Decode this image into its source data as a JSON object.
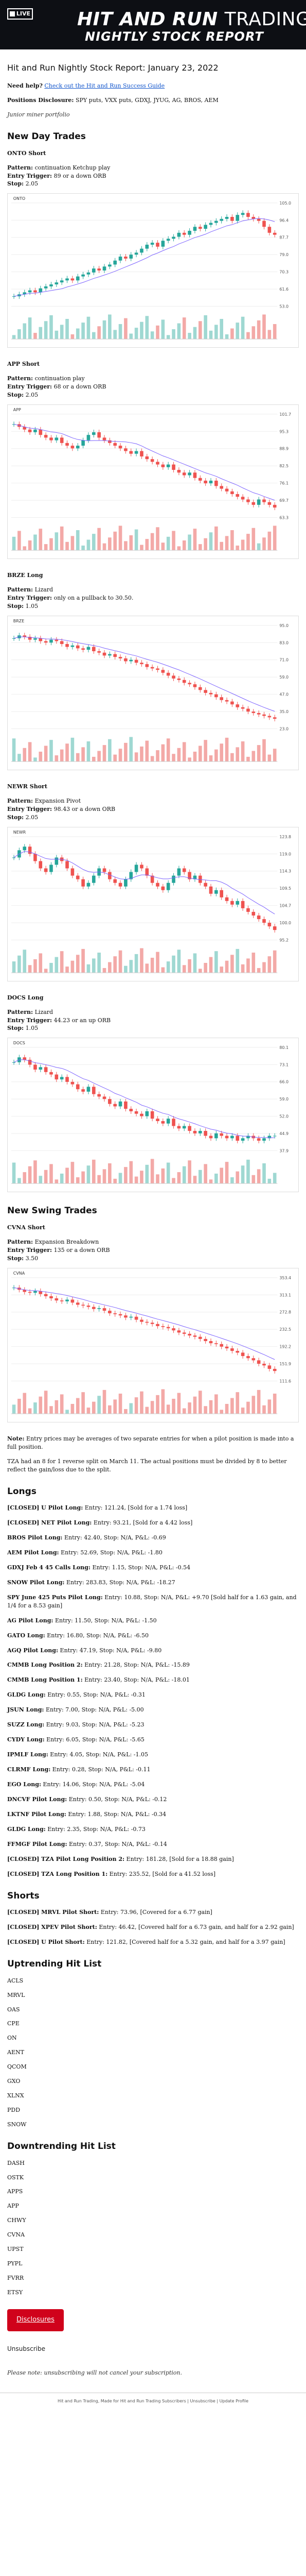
{
  "banner": {
    "logo_text": "LIVE",
    "brand_bold": "HIT AND RUN",
    "brand_thin": "TRADING",
    "subtitle": "NIGHTLY STOCK REPORT"
  },
  "report": {
    "title": "Hit and Run Nightly Stock Report: January 23, 2022",
    "help_prefix": "Need help?",
    "help_link": "Check out the Hit and Run Success Guide",
    "positions_label": "Positions Disclosure:",
    "positions_text": "SPY puts, VXX puts, GDXJ, JYUG, AG, BROS, AEM",
    "junior_text": "Junior miner portfolio"
  },
  "sections": {
    "new_day_trades": "New Day Trades",
    "new_swing_trades": "New Swing Trades",
    "longs": "Longs",
    "shorts": "Shorts",
    "uptrending": "Uptrending Hit List",
    "downtrending": "Downtrending Hit List"
  },
  "labels": {
    "pattern": "Pattern:",
    "entry": "Entry Trigger:",
    "stop": "Stop:"
  },
  "day_trades": [
    {
      "ticker": "ONTO Short",
      "pattern": "continuation Ketchup play",
      "entry": "89 or a down ORB",
      "stop": "2.05"
    },
    {
      "ticker": "APP Short",
      "pattern": "continuation play",
      "entry": "68 or a down ORB",
      "stop": "2.05"
    },
    {
      "ticker": "BRZE Long",
      "pattern": "Lizard",
      "entry": "only on a pullback to 30.50.",
      "stop": "1.05"
    },
    {
      "ticker": "NEWR Short",
      "pattern": "Expansion Pivot",
      "entry": "98.43 or a down ORB",
      "stop": "2.05"
    },
    {
      "ticker": "DOCS Long",
      "pattern": "Lizard",
      "entry": "44.23 or an up ORB",
      "stop": "1.05"
    }
  ],
  "swing_trades": [
    {
      "ticker": "CVNA Short",
      "pattern": "Expansion Breakdown",
      "entry": "135 or a down ORB",
      "stop": "3.50"
    }
  ],
  "notes": {
    "note_label": "Note:",
    "note_text": "Entry prices may be averages of two separate entries for when a pilot position is made into a full position.",
    "tza_text": "TZA had an 8 for 1 reverse split on March 11. The actual positions must be divided by 8 to better reflect the gain/loss due to the split."
  },
  "longs": [
    {
      "name": "[CLOSED] U Pilot Long:",
      "detail": "Entry: 121.24, [Sold for a 1.74 loss]"
    },
    {
      "name": "[CLOSED] NET Pilot Long:",
      "detail": "Entry: 93.21, [Sold for a 4.42 loss]"
    },
    {
      "name": "BROS Pilot Long:",
      "detail": "Entry: 42.40, Stop: N/A, P&L: -0.69"
    },
    {
      "name": "AEM Pilot Long:",
      "detail": "Entry: 52.69, Stop: N/A, P&L: -1.80"
    },
    {
      "name": "GDXJ Feb 4 45 Calls Long:",
      "detail": "Entry: 1.15, Stop: N/A, P&L: -0.54"
    },
    {
      "name": "SNOW Pilot Long:",
      "detail": "Entry: 283.83, Stop: N/A, P&L: -18.27"
    },
    {
      "name": "SPY June 425 Puts Pilot Long:",
      "detail": "Entry: 10.88, Stop: N/A, P&L: +9.70 [Sold half for a 1.63 gain, and 1/4 for a 8.53 gain]"
    },
    {
      "name": "AG Pilot Long:",
      "detail": "Entry: 11.50, Stop: N/A, P&L: -1.50"
    },
    {
      "name": "GATO Long:",
      "detail": "Entry: 16.80, Stop: N/A, P&L: -6.50"
    },
    {
      "name": "AGQ Pilot Long:",
      "detail": "Entry: 47.19, Stop: N/A, P&L: -9.80"
    },
    {
      "name": "CMMB Long Position 2:",
      "detail": "Entry: 21.28, Stop: N/A, P&L: -15.89"
    },
    {
      "name": "CMMB Long Position 1:",
      "detail": "Entry: 23.40, Stop: N/A, P&L: -18.01"
    },
    {
      "name": "GLDG Long:",
      "detail": "Entry: 0.55, Stop: N/A, P&L: -0.31"
    },
    {
      "name": "JSUN Long:",
      "detail": "Entry: 7.00, Stop: N/A, P&L: -5.00"
    },
    {
      "name": "SUZZ Long:",
      "detail": "Entry: 9.03, Stop: N/A, P&L: -5.23"
    },
    {
      "name": "CYDY Long:",
      "detail": "Entry: 6.05, Stop: N/A, P&L: -5.65"
    },
    {
      "name": "IPMLF Long:",
      "detail": "Entry: 4.05, Stop: N/A, P&L: -1.05"
    },
    {
      "name": "CLRMF Long:",
      "detail": "Entry: 0.28, Stop: N/A, P&L: -0.11"
    },
    {
      "name": "EGO Long:",
      "detail": "Entry: 14.06, Stop: N/A, P&L: -5.04"
    },
    {
      "name": "DNCVF Pilot Long:",
      "detail": "Entry: 0.50, Stop: N/A, P&L: -0.12"
    },
    {
      "name": "LKTNF Pilot Long:",
      "detail": "Entry: 1.88, Stop: N/A, P&L: -0.34"
    },
    {
      "name": "GLDG Long:",
      "detail": "Entry: 2.35, Stop: N/A, P&L: -0.73"
    },
    {
      "name": "FFMGF Pilot Long:",
      "detail": "Entry: 0.37, Stop: N/A, P&L: -0.14"
    },
    {
      "name": "[CLOSED] TZA Pilot Long Position 2:",
      "detail": "Entry: 181.28, [Sold for a 18.88 gain]"
    },
    {
      "name": "[CLOSED] TZA Long Position 1:",
      "detail": "Entry: 235.52, [Sold for a 41.52 loss]"
    }
  ],
  "shorts": [
    {
      "name": "[CLOSED] MRVL Pilot Short:",
      "detail": "Entry: 73.96, [Covered for a 6.77 gain]"
    },
    {
      "name": "[CLOSED] XPEV Pilot Short:",
      "detail": "Entry: 46.42, [Covered half for a 6.73 gain, and half for a 2.92 gain]"
    },
    {
      "name": "[CLOSED] U Pilot Short:",
      "detail": "Entry: 121.82, [Covered half for a 5.32 gain, and half for a 3.97 gain]"
    }
  ],
  "uptrending_list": [
    "ACLS",
    "MRVL",
    "OAS",
    "CPE",
    "ON",
    "AENT",
    "QCOM",
    "GXO",
    "XLNX",
    "PDD",
    "SNOW"
  ],
  "downtrending_list": [
    "DASH",
    "OSTK",
    "APPS",
    "APP",
    "CHWY",
    "CVNA",
    "UPST",
    "PYPL",
    "FVRR",
    "ETSY"
  ],
  "footer": {
    "button_label": "Disclosures",
    "unsubscribe": "Unsubscribe",
    "note": "Please note: unsubscribing will not cancel your subscription.",
    "address": "Hit and Run Trading, Made for Hit and Run Trading Subscribers | Unsubscribe | Update Profile"
  },
  "chart_data": [
    {
      "type": "candlestick",
      "title": "ONTO",
      "x": [
        1,
        2,
        3,
        4,
        5,
        6,
        7,
        8,
        9,
        10,
        11,
        12,
        13,
        14,
        15,
        16,
        17,
        18,
        19,
        20,
        21,
        22,
        23,
        24,
        25,
        26,
        27,
        28,
        29,
        30,
        31,
        32,
        33,
        34,
        35,
        36,
        37,
        38,
        39,
        40,
        41,
        42,
        43,
        44,
        45,
        46,
        47,
        48,
        49,
        50
      ],
      "values": [
        58,
        59,
        60,
        61,
        60,
        62,
        63,
        64,
        65,
        66,
        67,
        66,
        68,
        69,
        70,
        72,
        71,
        73,
        74,
        76,
        78,
        77,
        79,
        80,
        82,
        84,
        85,
        83,
        86,
        87,
        88,
        90,
        89,
        91,
        93,
        92,
        94,
        95,
        96,
        97,
        98,
        96,
        99,
        100,
        98,
        97,
        96,
        93,
        90,
        89
      ],
      "color_scheme": {
        "up": "#26a69a",
        "down": "#ef5350"
      }
    },
    {
      "type": "candlestick",
      "title": "APP",
      "x": [
        1,
        2,
        3,
        4,
        5,
        6,
        7,
        8,
        9,
        10,
        11,
        12,
        13,
        14,
        15,
        16,
        17,
        18,
        19,
        20,
        21,
        22,
        23,
        24,
        25,
        26,
        27,
        28,
        29,
        30,
        31,
        32,
        33,
        34,
        35,
        36,
        37,
        38,
        39,
        40,
        41,
        42,
        43,
        44,
        45,
        46,
        47,
        48,
        49,
        50
      ],
      "values": [
        98,
        97,
        96,
        95,
        96,
        94,
        93,
        92,
        93,
        91,
        90,
        89,
        90,
        92,
        94,
        95,
        93,
        92,
        91,
        90,
        89,
        88,
        87,
        88,
        86,
        85,
        84,
        83,
        82,
        83,
        81,
        80,
        79,
        80,
        78,
        77,
        76,
        77,
        75,
        74,
        73,
        72,
        71,
        70,
        69,
        68,
        70,
        69,
        68,
        67
      ]
    },
    {
      "type": "candlestick",
      "title": "BRZE",
      "x": [
        1,
        2,
        3,
        4,
        5,
        6,
        7,
        8,
        9,
        10,
        11,
        12,
        13,
        14,
        15,
        16,
        17,
        18,
        19,
        20,
        21,
        22,
        23,
        24,
        25,
        26,
        27,
        28,
        29,
        30,
        31,
        32,
        33,
        34,
        35,
        36,
        37,
        38,
        39,
        40,
        41,
        42,
        43,
        44,
        45,
        46,
        47,
        48,
        49,
        50
      ],
      "values": [
        86,
        88,
        87,
        85,
        86,
        84,
        83,
        85,
        84,
        82,
        80,
        81,
        79,
        78,
        80,
        77,
        76,
        74,
        75,
        73,
        72,
        70,
        71,
        69,
        68,
        66,
        65,
        64,
        62,
        60,
        58,
        57,
        55,
        54,
        52,
        50,
        48,
        47,
        45,
        43,
        42,
        40,
        38,
        37,
        35,
        34,
        33,
        32,
        31,
        30
      ]
    },
    {
      "type": "candlestick",
      "title": "NEWR",
      "x": [
        1,
        2,
        3,
        4,
        5,
        6,
        7,
        8,
        9,
        10,
        11,
        12,
        13,
        14,
        15,
        16,
        17,
        18,
        19,
        20,
        21,
        22,
        23,
        24,
        25,
        26,
        27,
        28,
        29,
        30,
        31,
        32,
        33,
        34,
        35,
        36,
        37,
        38,
        39,
        40,
        41,
        42,
        43,
        44,
        45,
        46,
        47,
        48,
        49,
        50
      ],
      "values": [
        118,
        120,
        121,
        119,
        117,
        115,
        114,
        116,
        118,
        117,
        115,
        113,
        112,
        110,
        111,
        113,
        115,
        114,
        112,
        111,
        110,
        112,
        114,
        116,
        115,
        113,
        111,
        110,
        109,
        111,
        113,
        115,
        114,
        112,
        113,
        111,
        110,
        108,
        109,
        107,
        106,
        105,
        106,
        104,
        103,
        102,
        101,
        100,
        99,
        98
      ]
    },
    {
      "type": "candlestick",
      "title": "DOCS",
      "x": [
        1,
        2,
        3,
        4,
        5,
        6,
        7,
        8,
        9,
        10,
        11,
        12,
        13,
        14,
        15,
        16,
        17,
        18,
        19,
        20,
        21,
        22,
        23,
        24,
        25,
        26,
        27,
        28,
        29,
        30,
        31,
        32,
        33,
        34,
        35,
        36,
        37,
        38,
        39,
        40,
        41,
        42,
        43,
        44,
        45,
        46,
        47,
        48,
        49,
        50
      ],
      "values": [
        74,
        76,
        75,
        73,
        71,
        72,
        70,
        69,
        67,
        68,
        66,
        65,
        63,
        62,
        64,
        61,
        60,
        59,
        57,
        56,
        58,
        55,
        54,
        53,
        52,
        54,
        51,
        50,
        49,
        51,
        48,
        47,
        48,
        46,
        45,
        46,
        44,
        43,
        45,
        44,
        43,
        44,
        42,
        43,
        44,
        43,
        42,
        43,
        44,
        44
      ]
    },
    {
      "type": "candlestick",
      "title": "CVNA",
      "x": [
        1,
        2,
        3,
        4,
        5,
        6,
        7,
        8,
        9,
        10,
        11,
        12,
        13,
        14,
        15,
        16,
        17,
        18,
        19,
        20,
        21,
        22,
        23,
        24,
        25,
        26,
        27,
        28,
        29,
        30,
        31,
        32,
        33,
        34,
        35,
        36,
        37,
        38,
        39,
        40,
        41,
        42,
        43,
        44,
        45,
        46,
        47,
        48,
        49,
        50
      ],
      "values": [
        330,
        325,
        320,
        318,
        322,
        315,
        310,
        305,
        300,
        298,
        302,
        295,
        290,
        288,
        285,
        280,
        282,
        276,
        270,
        268,
        265,
        260,
        262,
        255,
        250,
        248,
        245,
        240,
        238,
        235,
        230,
        225,
        222,
        218,
        215,
        210,
        205,
        200,
        198,
        192,
        188,
        182,
        178,
        170,
        165,
        160,
        152,
        148,
        140,
        135
      ]
    }
  ]
}
